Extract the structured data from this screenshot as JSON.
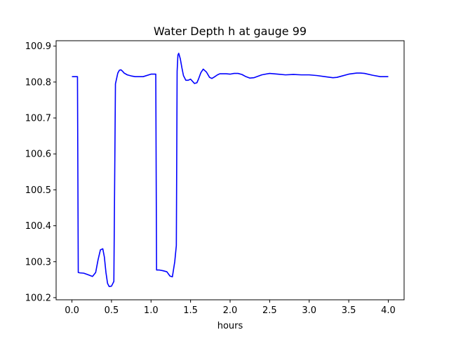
{
  "chart_data": {
    "type": "line",
    "title": "Water Depth h at gauge 99",
    "xlabel": "hours",
    "ylabel": "",
    "xlim": [
      -0.2,
      4.2
    ],
    "ylim": [
      100.194,
      100.915
    ],
    "xticks": [
      0.0,
      0.5,
      1.0,
      1.5,
      2.0,
      2.5,
      3.0,
      3.5,
      4.0
    ],
    "xtick_labels": [
      "0.0",
      "0.5",
      "1.0",
      "1.5",
      "2.0",
      "2.5",
      "3.0",
      "3.5",
      "4.0"
    ],
    "yticks": [
      100.2,
      100.3,
      100.4,
      100.5,
      100.6,
      100.7,
      100.8,
      100.9
    ],
    "ytick_labels": [
      "100.2",
      "100.3",
      "100.4",
      "100.5",
      "100.6",
      "100.7",
      "100.8",
      "100.9"
    ],
    "grid": false,
    "series": [
      {
        "color": "#0000ff",
        "x": [
          0.0,
          0.07,
          0.08,
          0.1,
          0.15,
          0.2,
          0.26,
          0.3,
          0.33,
          0.36,
          0.39,
          0.41,
          0.43,
          0.45,
          0.47,
          0.5,
          0.53,
          0.55,
          0.56,
          0.57,
          0.58,
          0.6,
          0.62,
          0.64,
          0.66,
          0.7,
          0.75,
          0.8,
          0.9,
          1.0,
          1.06,
          1.07,
          1.08,
          1.1,
          1.15,
          1.2,
          1.24,
          1.27,
          1.3,
          1.32,
          1.33,
          1.34,
          1.35,
          1.37,
          1.39,
          1.41,
          1.44,
          1.47,
          1.5,
          1.55,
          1.58,
          1.6,
          1.63,
          1.66,
          1.7,
          1.74,
          1.77,
          1.8,
          1.84,
          1.87,
          1.9,
          1.95,
          2.0,
          2.05,
          2.1,
          2.15,
          2.2,
          2.25,
          2.3,
          2.4,
          2.5,
          2.6,
          2.7,
          2.8,
          2.9,
          3.0,
          3.1,
          3.2,
          3.3,
          3.35,
          3.4,
          3.5,
          3.6,
          3.65,
          3.7,
          3.8,
          3.9,
          4.0
        ],
        "y": [
          100.815,
          100.815,
          100.27,
          100.269,
          100.268,
          100.264,
          100.259,
          100.27,
          100.305,
          100.333,
          100.336,
          100.313,
          100.27,
          100.24,
          100.231,
          100.232,
          100.245,
          100.795,
          100.805,
          100.815,
          100.825,
          100.833,
          100.834,
          100.83,
          100.825,
          100.82,
          100.817,
          100.815,
          100.815,
          100.822,
          100.822,
          100.277,
          100.277,
          100.277,
          100.275,
          100.272,
          100.26,
          100.258,
          100.3,
          100.345,
          100.83,
          100.875,
          100.88,
          100.865,
          100.84,
          100.818,
          100.805,
          100.805,
          100.808,
          100.796,
          100.798,
          100.808,
          100.826,
          100.836,
          100.828,
          100.813,
          100.81,
          100.814,
          100.82,
          100.823,
          100.823,
          100.823,
          100.822,
          100.824,
          100.824,
          100.821,
          100.815,
          100.811,
          100.812,
          100.82,
          100.824,
          100.822,
          100.82,
          100.821,
          100.82,
          100.82,
          100.818,
          100.815,
          100.812,
          100.813,
          100.816,
          100.822,
          100.825,
          100.825,
          100.824,
          100.819,
          100.815,
          100.815
        ]
      }
    ]
  }
}
